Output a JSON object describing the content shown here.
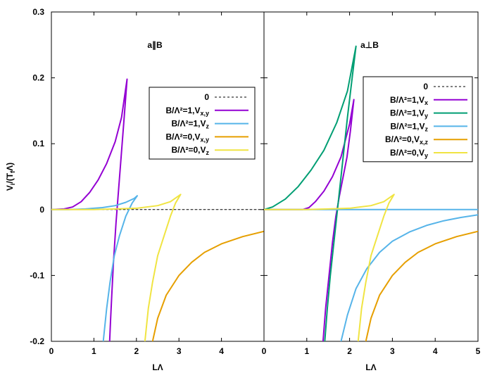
{
  "chart_data": [
    {
      "type": "line",
      "annotation": "a∥B",
      "xlabel": "LΛ",
      "ylabel": "V_i/(T_fΛ)",
      "xlim": [
        0,
        5
      ],
      "ylim": [
        -0.2,
        0.3
      ],
      "xticks": [
        "0",
        "1",
        "2",
        "3",
        "4"
      ],
      "yticks": [
        "-0.2",
        "-0.1",
        "0",
        "0.1",
        "0.2",
        "0.3"
      ],
      "grid": false,
      "legend_position": "top-right",
      "legend": [
        {
          "main": "0",
          "sub": ""
        },
        {
          "main": "B/Λ²=1,V",
          "sub": "x,y"
        },
        {
          "main": "B/Λ²=1,V",
          "sub": "z"
        },
        {
          "main": "B/Λ²=0,V",
          "sub": "x,y"
        },
        {
          "main": "B/Λ²=0,V",
          "sub": "z"
        }
      ],
      "series": [
        {
          "color": "#000000",
          "dash": true,
          "x": [
            0,
            5
          ],
          "y": [
            0,
            0
          ]
        },
        {
          "color": "#9400d3",
          "x": [
            0.0,
            0.3,
            0.5,
            0.7,
            0.9,
            1.1,
            1.3,
            1.5,
            1.65,
            1.78,
            1.7,
            1.64,
            1.58,
            1.52,
            1.46,
            1.42,
            1.39,
            1.37
          ],
          "y": [
            0.0,
            0.001,
            0.004,
            0.012,
            0.026,
            0.045,
            0.07,
            0.103,
            0.14,
            0.198,
            0.13,
            0.08,
            0.03,
            -0.02,
            -0.08,
            -0.13,
            -0.17,
            -0.2
          ]
        },
        {
          "color": "#56b4e9",
          "x": [
            0.0,
            0.4,
            0.8,
            1.2,
            1.5,
            1.75,
            1.95,
            2.02,
            1.9,
            1.75,
            1.6,
            1.48,
            1.38,
            1.3,
            1.22
          ],
          "y": [
            0.0,
            0.0,
            0.001,
            0.003,
            0.006,
            0.011,
            0.017,
            0.021,
            0.01,
            -0.01,
            -0.04,
            -0.07,
            -0.11,
            -0.15,
            -0.2
          ]
        },
        {
          "color": "#e69f00",
          "x": [
            2.38,
            2.5,
            2.7,
            3.0,
            3.3,
            3.6,
            4.0,
            4.5,
            5.0
          ],
          "y": [
            -0.2,
            -0.165,
            -0.13,
            -0.1,
            -0.08,
            -0.065,
            -0.052,
            -0.041,
            -0.033
          ]
        },
        {
          "color": "#f0e442",
          "x": [
            0.0,
            0.5,
            1.0,
            1.5,
            2.0,
            2.5,
            2.8,
            3.04,
            2.92,
            2.8,
            2.65,
            2.5,
            2.38,
            2.28,
            2.2
          ],
          "y": [
            0.0,
            0.0,
            0.0,
            0.001,
            0.002,
            0.006,
            0.012,
            0.023,
            0.01,
            -0.01,
            -0.04,
            -0.07,
            -0.11,
            -0.15,
            -0.2
          ]
        }
      ]
    },
    {
      "type": "line",
      "annotation": "a⊥B",
      "xlabel": "LΛ",
      "ylabel": "",
      "xlim": [
        0,
        5
      ],
      "ylim": [
        -0.2,
        0.3
      ],
      "xticks": [
        "0",
        "1",
        "2",
        "3",
        "4",
        "5"
      ],
      "grid": false,
      "legend_position": "top-right",
      "legend": [
        {
          "main": "0",
          "sub": ""
        },
        {
          "main": "B/Λ²=1,V",
          "sub": "x"
        },
        {
          "main": "B/Λ²=1,V",
          "sub": "y"
        },
        {
          "main": "B/Λ²=1,V",
          "sub": "z"
        },
        {
          "main": "B/Λ²=0,V",
          "sub": "x,z"
        },
        {
          "main": "B/Λ²=0,V",
          "sub": "y"
        }
      ],
      "series": [
        {
          "color": "#000000",
          "dash": true,
          "x": [
            0,
            5
          ],
          "y": [
            0,
            0
          ]
        },
        {
          "color": "#9400d3",
          "x": [
            0.0,
            0.5,
            0.9,
            1.05,
            1.2,
            1.4,
            1.6,
            1.8,
            2.0,
            2.1,
            2.02,
            1.94,
            1.85,
            1.76,
            1.68,
            1.6,
            1.52,
            1.44,
            1.38
          ],
          "y": [
            0.0,
            0.0,
            0.0,
            0.003,
            0.012,
            0.028,
            0.05,
            0.08,
            0.13,
            0.167,
            0.12,
            0.08,
            0.05,
            0.02,
            -0.01,
            -0.05,
            -0.1,
            -0.15,
            -0.2
          ]
        },
        {
          "color": "#009e73",
          "x": [
            0.0,
            0.2,
            0.5,
            0.8,
            1.1,
            1.4,
            1.7,
            1.95,
            2.15,
            2.06,
            1.95,
            1.85,
            1.75,
            1.65,
            1.55,
            1.48,
            1.42
          ],
          "y": [
            0.0,
            0.004,
            0.016,
            0.035,
            0.06,
            0.09,
            0.132,
            0.18,
            0.248,
            0.2,
            0.14,
            0.08,
            0.02,
            -0.04,
            -0.1,
            -0.15,
            -0.2
          ]
        },
        {
          "color": "#56b4e9",
          "x": [
            0.0,
            1.0,
            2.0,
            3.0,
            4.0,
            5.0
          ],
          "y": [
            0.0,
            0.0,
            0.0,
            0.0,
            0.0,
            0.0
          ]
        },
        {
          "color": "#56b4e9",
          "x": [
            1.8,
            1.95,
            2.15,
            2.4,
            2.7,
            3.0,
            3.4,
            3.8,
            4.2,
            4.6,
            5.0
          ],
          "y": [
            -0.2,
            -0.16,
            -0.12,
            -0.09,
            -0.065,
            -0.048,
            -0.034,
            -0.024,
            -0.017,
            -0.012,
            -0.008
          ]
        },
        {
          "color": "#e69f00",
          "x": [
            2.38,
            2.5,
            2.7,
            3.0,
            3.3,
            3.6,
            4.0,
            4.5,
            5.0
          ],
          "y": [
            -0.2,
            -0.165,
            -0.13,
            -0.1,
            -0.08,
            -0.065,
            -0.052,
            -0.041,
            -0.033
          ]
        },
        {
          "color": "#f0e442",
          "x": [
            0.0,
            0.5,
            1.0,
            1.5,
            2.0,
            2.5,
            2.8,
            3.04,
            2.92,
            2.8,
            2.65,
            2.5,
            2.38,
            2.28,
            2.2
          ],
          "y": [
            0.0,
            0.0,
            0.0,
            0.001,
            0.002,
            0.006,
            0.012,
            0.023,
            0.01,
            -0.01,
            -0.04,
            -0.07,
            -0.11,
            -0.15,
            -0.2
          ]
        }
      ]
    }
  ]
}
